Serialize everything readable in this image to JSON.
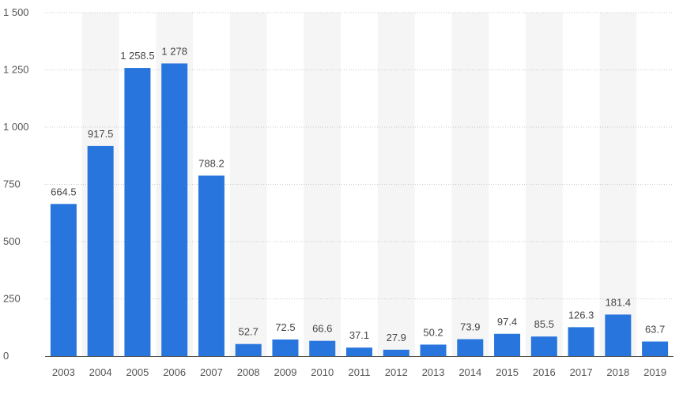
{
  "chart_data": {
    "type": "bar",
    "categories": [
      "2003",
      "2004",
      "2005",
      "2006",
      "2007",
      "2008",
      "2009",
      "2010",
      "2011",
      "2012",
      "2013",
      "2014",
      "2015",
      "2016",
      "2017",
      "2018",
      "2019"
    ],
    "values": [
      664.5,
      917.5,
      1258.5,
      1278,
      788.2,
      52.7,
      72.5,
      66.6,
      37.1,
      27.9,
      50.2,
      73.9,
      97.4,
      85.5,
      126.3,
      181.4,
      63.7
    ],
    "value_labels": [
      "664.5",
      "917.5",
      "1 258.5",
      "1 278",
      "788.2",
      "52.7",
      "72.5",
      "66.6",
      "37.1",
      "27.9",
      "50.2",
      "73.9",
      "97.4",
      "85.5",
      "126.3",
      "181.4",
      "63.7"
    ],
    "title": "",
    "xlabel": "",
    "ylabel": "",
    "ylim": [
      0,
      1500
    ],
    "yticks": [
      0,
      250,
      500,
      750,
      1000,
      1250,
      1500
    ],
    "ytick_labels": [
      "0",
      "250",
      "500",
      "750",
      "1 000",
      "1 250",
      "1 500"
    ],
    "grid": true,
    "legend": "none",
    "colors": {
      "bar": "#2876dd",
      "band": "#f5f5f5",
      "grid": "#c8c8c8",
      "axis": "#555555",
      "tick_text": "#555555",
      "label_text": "#444444"
    }
  }
}
